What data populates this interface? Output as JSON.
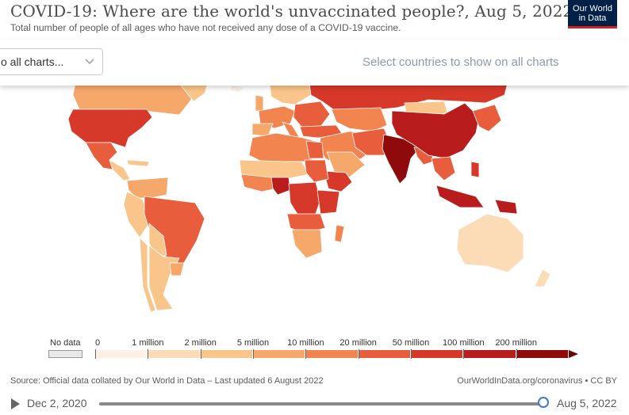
{
  "header": {
    "title": "COVID-19: Where are the world's unvaccinated people?, Aug 5, 2022",
    "subtitle": "Total number of people of all ages who have not received any dose of a COVID-19 vaccine.",
    "logo_line1": "Our World",
    "logo_line2": "in Data"
  },
  "toolbar": {
    "dropdown_label": "o all charts...",
    "select_countries": "Select countries to show on all charts"
  },
  "legend": {
    "no_data_label": "No data",
    "no_data_color": "#e8e8e8",
    "bins": [
      {
        "label": "0",
        "color": "#fdf0e4"
      },
      {
        "label": "1 million",
        "color": "#fbdcb6"
      },
      {
        "label": "2 million",
        "color": "#f9c58a"
      },
      {
        "label": "5 million",
        "color": "#f6a86a"
      },
      {
        "label": "10 million",
        "color": "#f2844f"
      },
      {
        "label": "20 million",
        "color": "#e85e3d"
      },
      {
        "label": "50 million",
        "color": "#d6382a"
      },
      {
        "label": "100 million",
        "color": "#b81c1c"
      },
      {
        "label": "200 million",
        "color": "#8f0b0b"
      }
    ],
    "top_color": "#6f0000"
  },
  "footer": {
    "source": "Source: Official data collated by Our World in Data – Last updated 6 August 2022",
    "credit": "OurWorldInData.org/coronavirus • CC BY"
  },
  "timeline": {
    "start_date": "Dec 2, 2020",
    "end_date": "Aug 5, 2022",
    "position": 1.0
  },
  "map_colors": {
    "ocean": "#ffffff",
    "border": "#ffffff"
  }
}
